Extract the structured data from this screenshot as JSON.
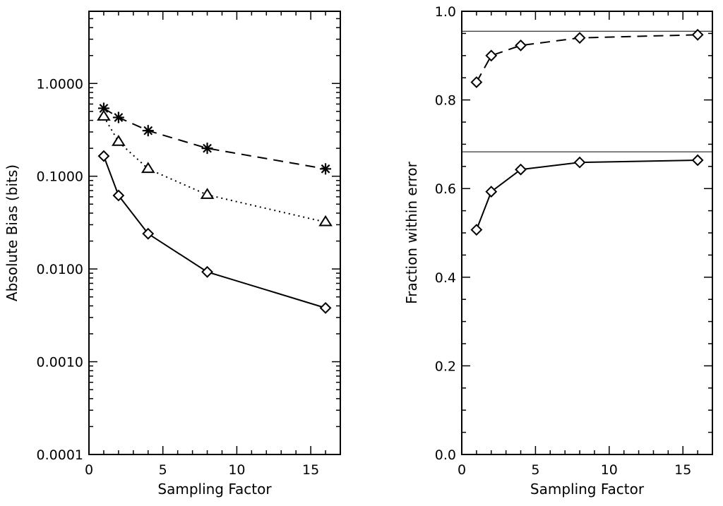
{
  "chart_data": [
    {
      "type": "line",
      "yscale": "log",
      "xlabel": "Sampling Factor",
      "ylabel": "Absolute Bias (bits)",
      "xlim": [
        0,
        17
      ],
      "ylim": [
        0.0001,
        6
      ],
      "x_ticks": [
        0,
        5,
        10,
        15
      ],
      "x_tick_labels": [
        "0",
        "5",
        "10",
        "15"
      ],
      "y_ticks": [
        0.0001,
        0.001,
        0.01,
        0.1,
        1
      ],
      "y_tick_labels": [
        "0.0001",
        "0.0010",
        "0.0100",
        "0.1000",
        "1.0000"
      ],
      "series": [
        {
          "name": "asterisk-dashed",
          "marker": "asterisk",
          "linestyle": "dashed",
          "x": [
            1,
            2,
            4,
            8,
            16
          ],
          "y": [
            0.54,
            0.43,
            0.31,
            0.2,
            0.12
          ]
        },
        {
          "name": "triangle-dotted",
          "marker": "triangle",
          "linestyle": "dotted",
          "x": [
            1,
            2,
            4,
            8,
            16
          ],
          "y": [
            0.44,
            0.235,
            0.12,
            0.063,
            0.032
          ]
        },
        {
          "name": "diamond-solid",
          "marker": "diamond",
          "linestyle": "solid",
          "x": [
            1,
            2,
            4,
            8,
            16
          ],
          "y": [
            0.165,
            0.062,
            0.024,
            0.0093,
            0.0038
          ]
        }
      ]
    },
    {
      "type": "line",
      "yscale": "linear",
      "xlabel": "Sampling Factor",
      "ylabel": "Fraction within error",
      "xlim": [
        0,
        17
      ],
      "ylim": [
        0,
        1
      ],
      "x_ticks": [
        0,
        5,
        10,
        15
      ],
      "x_tick_labels": [
        "0",
        "5",
        "10",
        "15"
      ],
      "y_ticks": [
        0,
        0.2,
        0.4,
        0.6,
        0.8,
        1.0
      ],
      "y_tick_labels": [
        "0.0",
        "0.2",
        "0.4",
        "0.6",
        "0.8",
        "1.0"
      ],
      "reference_lines": [
        0.955,
        0.683
      ],
      "series": [
        {
          "name": "diamond-dashed",
          "marker": "diamond",
          "linestyle": "dashed",
          "x": [
            1,
            2,
            4,
            8,
            16
          ],
          "y": [
            0.84,
            0.9,
            0.923,
            0.94,
            0.947
          ]
        },
        {
          "name": "diamond-solid",
          "marker": "diamond",
          "linestyle": "solid",
          "x": [
            1,
            2,
            4,
            8,
            16
          ],
          "y": [
            0.507,
            0.593,
            0.643,
            0.659,
            0.664
          ]
        }
      ]
    }
  ]
}
